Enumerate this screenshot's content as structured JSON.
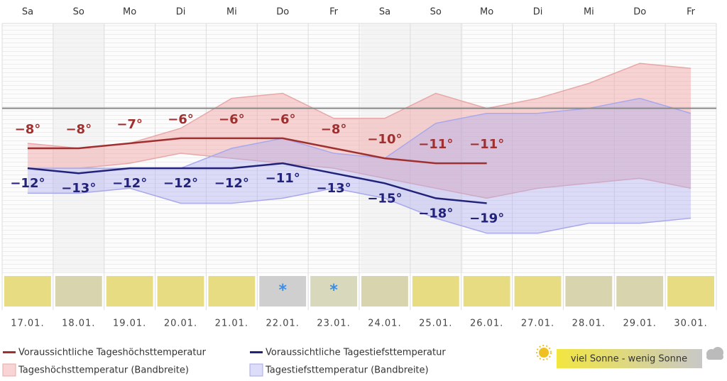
{
  "chart_data": {
    "type": "band-line",
    "ylim": [
      -33,
      17
    ],
    "zero_line": true,
    "weekdays": [
      "Sa",
      "So",
      "Mo",
      "Di",
      "Mi",
      "Do",
      "Fr",
      "Sa",
      "So",
      "Mo",
      "Di",
      "Mi",
      "Do",
      "Fr"
    ],
    "categories": [
      "17.01.",
      "18.01.",
      "19.01.",
      "20.01.",
      "21.01.",
      "22.01.",
      "23.01.",
      "24.01.",
      "25.01.",
      "26.01.",
      "27.01.",
      "28.01.",
      "29.01.",
      "30.01."
    ],
    "bands": [
      {
        "name": "Tageshöchsttemperatur (Bandbreite)",
        "color": "rgba(240,160,160,0.45)",
        "edge": "#e8a8a8",
        "upper": [
          -7,
          -8,
          -7,
          -4,
          2,
          3,
          -2,
          -2,
          3,
          0,
          2,
          5,
          9,
          8
        ],
        "lower": [
          -12,
          -12,
          -11,
          -9,
          -10,
          -11,
          -12,
          -14,
          -16,
          -18,
          -16,
          -15,
          -14,
          -16
        ]
      },
      {
        "name": "Tagestiefsttemperatur (Bandbreite)",
        "color": "rgba(170,170,240,0.4)",
        "edge": "#a8a8ec",
        "upper": [
          -12,
          -12,
          -12,
          -12,
          -8,
          -6,
          -9,
          -10,
          -3,
          -1,
          -1,
          0,
          2,
          -1
        ],
        "lower": [
          -17,
          -17,
          -16,
          -19,
          -19,
          -18,
          -16,
          -18,
          -22,
          -25,
          -25,
          -23,
          -23,
          -22
        ]
      }
    ],
    "series": [
      {
        "name": "Voraussichtliche Tageshöchsttemperatur",
        "color": "#a03030",
        "label_side": "above",
        "values": [
          -8,
          -8,
          -7,
          -6,
          -6,
          -6,
          -8,
          -10,
          -11,
          -11,
          null,
          null,
          null,
          null
        ],
        "value_labels": [
          "−8°",
          "−8°",
          "−7°",
          "−6°",
          "−6°",
          "−6°",
          "−8°",
          "−10°",
          "−11°",
          "−11°",
          null,
          null,
          null,
          null
        ]
      },
      {
        "name": "Voraussichtliche Tagestiefsttemperatur",
        "color": "#22227a",
        "label_side": "below",
        "values": [
          -12,
          -13,
          -12,
          -12,
          -12,
          -11,
          -13,
          -15,
          -18,
          -19,
          null,
          null,
          null,
          null
        ],
        "value_labels": [
          "−12°",
          "−13°",
          "−12°",
          "−12°",
          "−12°",
          "−11°",
          "−13°",
          "−15°",
          "−18°",
          "−19°",
          null,
          null,
          null,
          null
        ]
      }
    ],
    "weather": {
      "colors": [
        "#e8dc82",
        "#d8d4ae",
        "#e8dc82",
        "#e8dc82",
        "#e8dc82",
        "#cfcfcf",
        "#d8d8bc",
        "#d8d4ae",
        "#e8dc82",
        "#e8dc82",
        "#e8dc82",
        "#d8d4ae",
        "#d8d4ae",
        "#e8dc82"
      ],
      "snow": [
        false,
        false,
        false,
        false,
        false,
        true,
        true,
        false,
        false,
        false,
        false,
        false,
        false,
        false
      ],
      "legend": "viel Sonne - wenig Sonne"
    }
  }
}
